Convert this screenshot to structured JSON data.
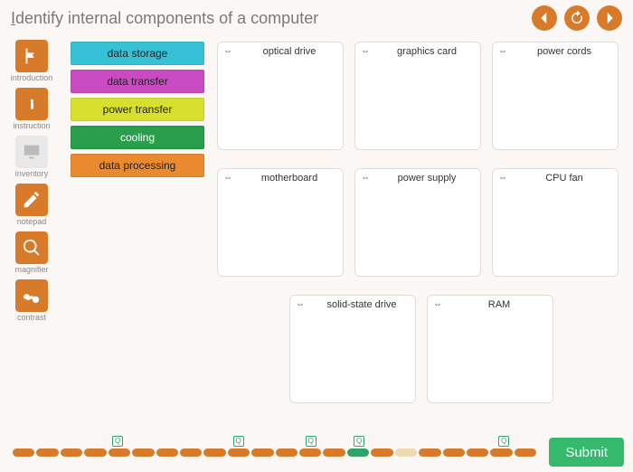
{
  "header": {
    "title": "Identify internal components of a computer",
    "nav": {
      "prev": "prev",
      "refresh": "refresh",
      "next": "next"
    }
  },
  "rail": [
    {
      "key": "introduction",
      "label": "introduction",
      "icon": "flag",
      "active": true
    },
    {
      "key": "instruction",
      "label": "instruction",
      "icon": "info",
      "active": true
    },
    {
      "key": "inventory",
      "label": "inventory",
      "icon": "monitor",
      "active": false
    },
    {
      "key": "notepad",
      "label": "notepad",
      "icon": "pencil",
      "active": true
    },
    {
      "key": "magnifier",
      "label": "magnifier",
      "icon": "magnify",
      "active": true
    },
    {
      "key": "contrast",
      "label": "contrast",
      "icon": "glasses",
      "active": true
    }
  ],
  "categories": [
    {
      "label": "data storage",
      "color": "#37c1d6"
    },
    {
      "label": "data transfer",
      "color": "#c94bc2"
    },
    {
      "label": "power transfer",
      "color": "#d7e02f"
    },
    {
      "label": "cooling",
      "color": "#2a9e4c",
      "text_color": "#ffffff"
    },
    {
      "label": "data processing",
      "color": "#ea8a2e"
    }
  ],
  "drop_rows": [
    [
      {
        "label": "optical drive"
      },
      {
        "label": "graphics card"
      },
      {
        "label": "power cords"
      }
    ],
    [
      {
        "label": "motherboard"
      },
      {
        "label": "power supply"
      },
      {
        "label": "CPU fan"
      }
    ],
    [
      {
        "label": "solid-state drive"
      },
      {
        "label": "RAM"
      }
    ]
  ],
  "footer": {
    "submit_label": "Submit",
    "steps": {
      "count": 22,
      "default_color": "#d77a2a",
      "colors": {
        "14": "#2fa36a",
        "16": "#efd9b0"
      },
      "markers_at": [
        4,
        9,
        12,
        14,
        20
      ]
    }
  },
  "colors": {
    "accent": "#d77a2a",
    "bg": "#faf7f4",
    "submit": "#34b96d"
  }
}
